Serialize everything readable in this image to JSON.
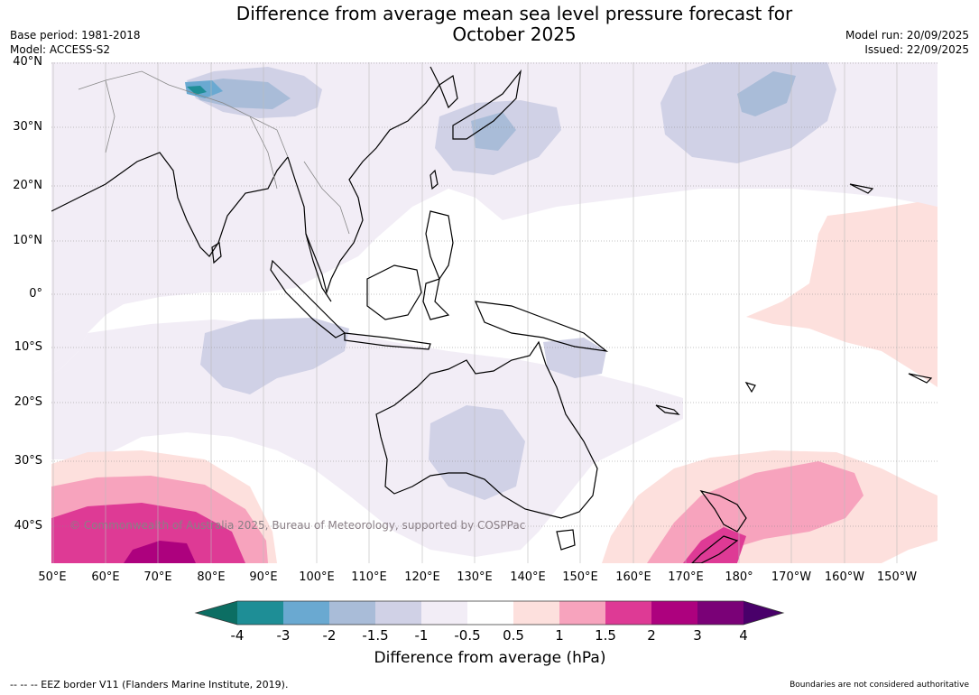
{
  "header": {
    "title_line1": "Difference from average mean sea level pressure forecast for",
    "title_line2": "October 2025",
    "base_period": "Base period: 1981-2018",
    "model": "Model: ACCESS-S2",
    "model_run": "Model run: 20/09/2025",
    "issued": "Issued: 22/09/2025"
  },
  "map": {
    "latitude_labels": [
      "40°N",
      "30°N",
      "20°N",
      "10°N",
      "0°",
      "10°S",
      "20°S",
      "30°S",
      "40°S"
    ],
    "longitude_labels": [
      "50°E",
      "60°E",
      "70°E",
      "80°E",
      "90°E",
      "100°E",
      "110°E",
      "120°E",
      "130°E",
      "140°E",
      "150°E",
      "160°E",
      "170°E",
      "180°",
      "170°W",
      "160°W",
      "150°W"
    ],
    "copyright": "© Commonwealth of Australia 2025, Bureau of Meteorology, supported by COSPPac",
    "land_colour": "#ffffff",
    "coastline_colour": "#000000",
    "border_colour": "#888888"
  },
  "colorbar": {
    "title": "Difference from average (hPa)",
    "tick_labels": [
      "-4",
      "-3",
      "-2",
      "-1.5",
      "-1",
      "-0.5",
      "0.5",
      "1",
      "1.5",
      "2",
      "3",
      "4"
    ],
    "colors": [
      "#0c6e63",
      "#1e8e96",
      "#6aa9d1",
      "#a9bcd8",
      "#d0d1e6",
      "#f2edf6",
      "#ffffff",
      "#fde0dd",
      "#f7a3bd",
      "#de3a95",
      "#ad017e",
      "#7a0177",
      "#49006a"
    ]
  },
  "footer": {
    "eez_note": "--  --  -- EEZ border V11 (Flanders Marine Institute, 2019).",
    "disclaimer": "Boundaries are not considered authoritative"
  }
}
